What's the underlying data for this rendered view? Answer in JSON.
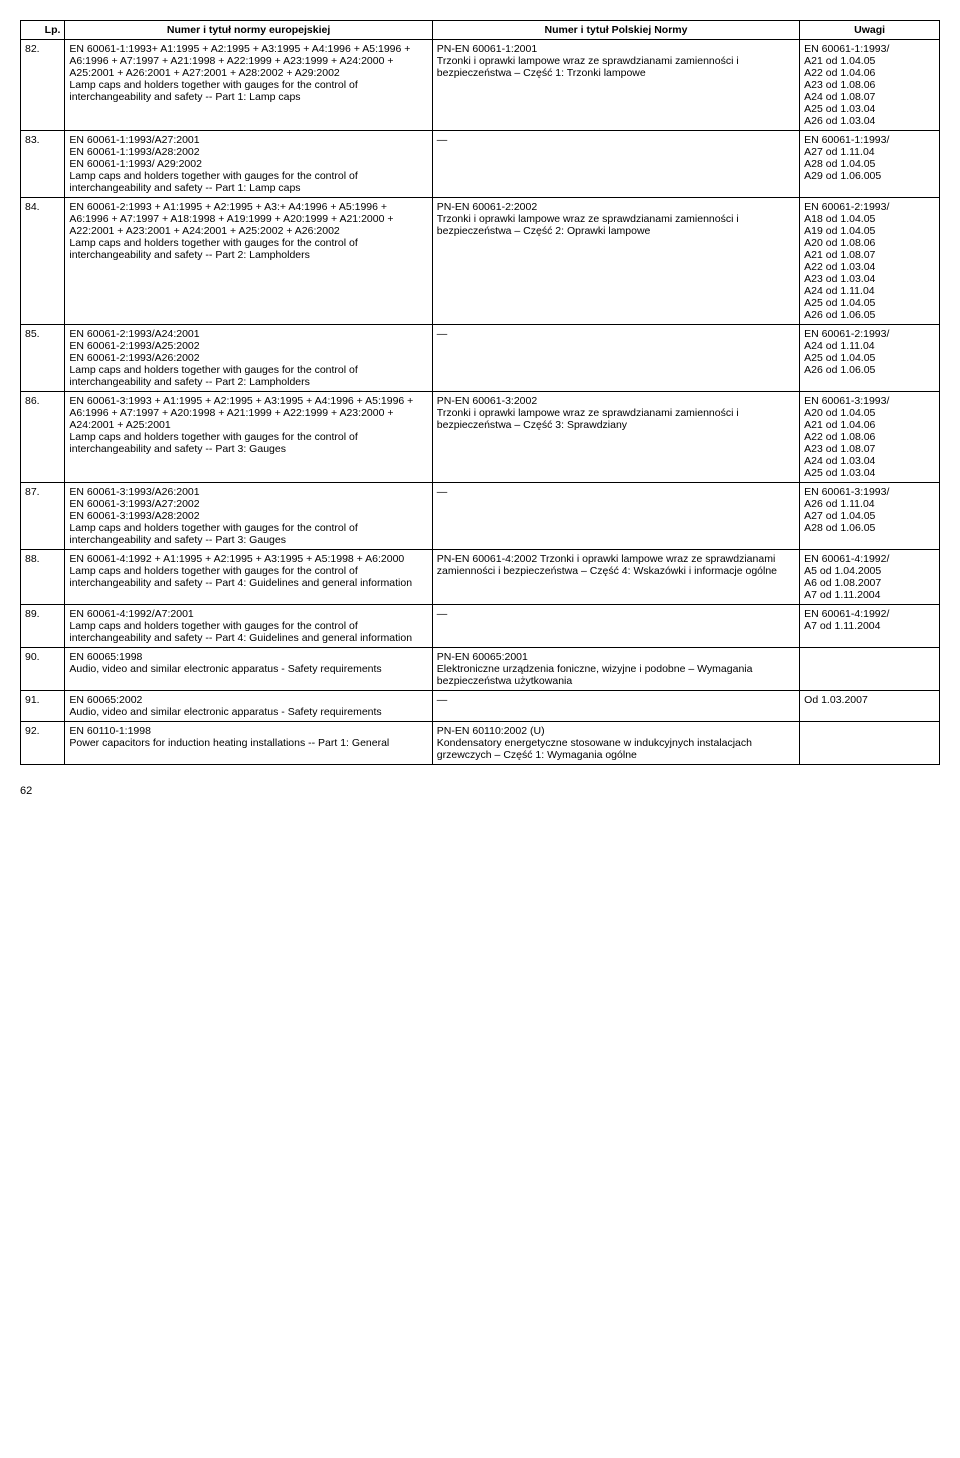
{
  "headers": {
    "lp": "Lp.",
    "eu": "Numer i tytuł normy europejskiej",
    "pn": "Numer i tytuł Polskiej Normy",
    "uw": "Uwagi"
  },
  "rows": [
    {
      "lp": "82.",
      "eu": "EN 60061-1:1993+ A1:1995 + A2:1995 + A3:1995 + A4:1996 + A5:1996 + A6:1996 + A7:1997 + A21:1998 + A22:1999 + A23:1999 + A24:2000 + A25:2001 + A26:2001 + A27:2001 + A28:2002 + A29:2002\nLamp caps and holders together with gauges for the control of interchangeability and safety -- Part 1: Lamp caps",
      "pn": "PN-EN 60061-1:2001\nTrzonki i oprawki lampowe wraz ze sprawdzianami zamienności i bezpieczeństwa – Część 1: Trzonki lampowe",
      "uw": "EN 60061-1:1993/\nA21 od 1.04.05\nA22 od 1.04.06\nA23 od 1.08.06\nA24 od 1.08.07\nA25 od 1.03.04\nA26 od 1.03.04"
    },
    {
      "lp": "83.",
      "eu": "EN 60061-1:1993/A27:2001\nEN 60061-1:1993/A28:2002\nEN 60061-1:1993/ A29:2002\nLamp caps and holders together with gauges for the control of interchangeability and safety -- Part 1: Lamp caps",
      "pn": "—",
      "uw": "EN 60061-1:1993/\nA27 od 1.11.04\nA28 od 1.04.05\nA29 od 1.06.005"
    },
    {
      "lp": "84.",
      "eu": "EN 60061-2:1993 + A1:1995 + A2:1995 + A3:+ A4:1996 + A5:1996 + A6:1996 + A7:1997 + A18:1998 + A19:1999 + A20:1999 + A21:2000 + A22:2001 + A23:2001 + A24:2001 + A25:2002 + A26:2002\nLamp caps and holders together with gauges for the control of interchangeability and safety -- Part 2: Lampholders",
      "pn": "PN-EN 60061-2:2002\nTrzonki i oprawki lampowe wraz ze sprawdzianami zamienności i bezpieczeństwa – Część 2: Oprawki lampowe",
      "uw": "EN 60061-2:1993/\nA18 od 1.04.05\nA19 od 1.04.05\nA20 od 1.08.06\nA21 od 1.08.07\nA22 od 1.03.04\nA23 od 1.03.04\nA24 od 1.11.04\nA25 od 1.04.05\nA26 od 1.06.05"
    },
    {
      "lp": "85.",
      "eu": "EN 60061-2:1993/A24:2001\n EN 60061-2:1993/A25:2002\nEN 60061-2:1993/A26:2002\nLamp caps and holders together with gauges for the control of interchangeability and safety -- Part 2: Lampholders",
      "pn": "—",
      "uw": "EN 60061-2:1993/\n A24 od 1.11.04\nA25 od 1.04.05\nA26 od 1.06.05"
    },
    {
      "lp": "86.",
      "eu": "EN 60061-3:1993 + A1:1995 + A2:1995 + A3:1995 + A4:1996 + A5:1996 + A6:1996 + A7:1997 + A20:1998 + A21:1999 + A22:1999 + A23:2000 + A24:2001 + A25:2001\nLamp caps and holders together with gauges for the control of interchangeability and safety -- Part 3: Gauges",
      "pn": "PN-EN 60061-3:2002\nTrzonki i oprawki lampowe wraz ze sprawdzianami zamienności i bezpieczeństwa – Część 3: Sprawdziany",
      "uw": "EN 60061-3:1993/\nA20 od 1.04.05\nA21 od 1.04.06\nA22 od 1.08.06\nA23 od 1.08.07\nA24 od 1.03.04\nA25 od 1.03.04"
    },
    {
      "lp": "87.",
      "eu": "EN 60061-3:1993/A26:2001\nEN 60061-3:1993/A27:2002\nEN 60061-3:1993/A28:2002\nLamp caps and holders together with gauges for the control of interchangeability and safety -- Part 3: Gauges",
      "pn": "—",
      "uw": "EN 60061-3:1993/\n A26 od 1.11.04\nA27 od 1.04.05\nA28 od 1.06.05"
    },
    {
      "lp": "88.",
      "eu": "EN 60061-4:1992 + A1:1995 + A2:1995 + A3:1995 + A5:1998 + A6:2000\nLamp caps and holders together with gauges for the control of interchangeability and safety -- Part 4: Guidelines and general information",
      "pn": "PN-EN 60061-4:2002 Trzonki i oprawki lampowe wraz ze sprawdzianami zamienności i bezpieczeństwa – Część 4: Wskazówki i informacje ogólne",
      "uw": "EN 60061-4:1992/\nA5 od 1.04.2005\nA6 od 1.08.2007\nA7 od 1.11.2004"
    },
    {
      "lp": "89.",
      "eu": "EN 60061-4:1992/A7:2001\nLamp caps and holders together with gauges for the control of interchangeability and safety -- Part 4: Guidelines and general information",
      "pn": "—",
      "uw": "EN 60061-4:1992/\nA7 od 1.11.2004"
    },
    {
      "lp": "90.",
      "eu": "EN 60065:1998\nAudio, video and similar electronic apparatus - Safety requirements",
      "pn": "PN-EN 60065:2001\nElektroniczne urządzenia foniczne, wizyjne i podobne – Wymagania bezpieczeństwa użytkowania",
      "uw": ""
    },
    {
      "lp": "91.",
      "eu": "EN 60065:2002\nAudio, video and similar electronic apparatus - Safety requirements",
      "pn": "—",
      "uw": "Od 1.03.2007"
    },
    {
      "lp": "92.",
      "eu": "EN 60110-1:1998\nPower capacitors for induction heating installations -- Part 1: General",
      "pn": "PN-EN 60110:2002 (U)\nKondensatory energetyczne stosowane w indukcyjnych instalacjach grzewczych – Część 1: Wymagania ogólne",
      "uw": ""
    }
  ],
  "pageNumber": "62"
}
